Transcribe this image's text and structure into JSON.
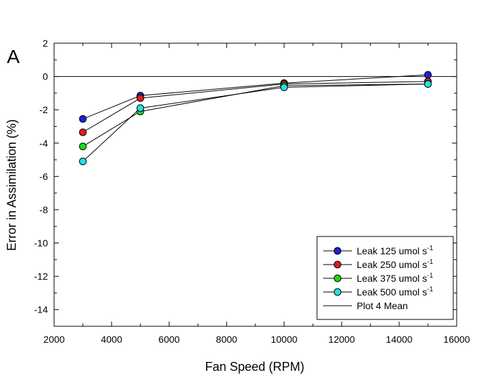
{
  "chart_data": {
    "type": "line",
    "panel_label": "A",
    "xlabel": "Fan Speed (RPM)",
    "ylabel": "Error in Assimilation (%)",
    "xlim": [
      2000,
      16000
    ],
    "ylim": [
      -15,
      2
    ],
    "x_ticks": [
      2000,
      4000,
      6000,
      8000,
      10000,
      12000,
      14000,
      16000
    ],
    "y_ticks": [
      2,
      0,
      -2,
      -4,
      -6,
      -8,
      -10,
      -12,
      -14
    ],
    "x_tick_labels": [
      "2000",
      "4000",
      "6000",
      "8000",
      "10000",
      "12000",
      "14000",
      "16000"
    ],
    "y_tick_labels": [
      "2",
      "0",
      "-2",
      "-4",
      "-6",
      "-8",
      "-10",
      "-12",
      "-14"
    ],
    "reference_line_y": 0,
    "grid": false,
    "legend_position": "bottom-right",
    "x": [
      3000,
      5000,
      10000,
      15000
    ],
    "series": [
      {
        "name": "Leak 125 umol s",
        "superscript": "-1",
        "color": "#1f1fd6",
        "values": [
          -2.55,
          -1.15,
          -0.4,
          0.1
        ]
      },
      {
        "name": "Leak 250 umol s",
        "superscript": "-1",
        "color": "#e11b1b",
        "values": [
          -3.35,
          -1.3,
          -0.45,
          -0.3
        ]
      },
      {
        "name": "Leak 375 umol s",
        "superscript": "-1",
        "color": "#22d422",
        "values": [
          -4.2,
          -2.1,
          -0.55,
          -0.45
        ]
      },
      {
        "name": "Leak 500 umol s",
        "superscript": "-1",
        "color": "#22e0e6",
        "values": [
          -5.1,
          -1.9,
          -0.65,
          -0.45
        ]
      }
    ],
    "mean_line": {
      "name": "Plot 4 Mean",
      "color": "#000000"
    }
  }
}
